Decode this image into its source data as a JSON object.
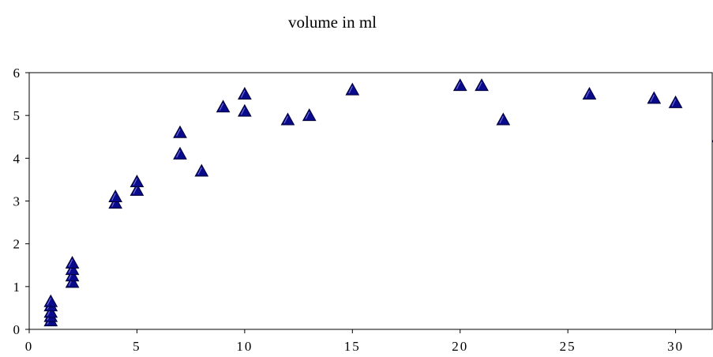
{
  "chart_data": {
    "type": "scatter",
    "title": "volume in ml",
    "xlabel": "",
    "ylabel": "",
    "xlim": [
      0,
      31.7
    ],
    "ylim": [
      0,
      6
    ],
    "x_ticks": [
      0,
      5,
      10,
      15,
      20,
      25,
      30
    ],
    "y_ticks": [
      0,
      1,
      2,
      3,
      4,
      5,
      6
    ],
    "grid": false,
    "legend": "none",
    "marker": "triangle",
    "marker_color": "#0a0a8c",
    "series": [
      {
        "points": [
          [
            1,
            0.2
          ],
          [
            1,
            0.3
          ],
          [
            1,
            0.4
          ],
          [
            1,
            0.55
          ],
          [
            1,
            0.65
          ],
          [
            2,
            1.1
          ],
          [
            2,
            1.25
          ],
          [
            2,
            1.4
          ],
          [
            2,
            1.55
          ],
          [
            4,
            2.95
          ],
          [
            4,
            3.1
          ],
          [
            5,
            3.25
          ],
          [
            5,
            3.45
          ],
          [
            7,
            4.1
          ],
          [
            7,
            4.6
          ],
          [
            8,
            3.7
          ],
          [
            9,
            5.2
          ],
          [
            10,
            5.1
          ],
          [
            10,
            5.5
          ],
          [
            12,
            4.9
          ],
          [
            13,
            5.0
          ],
          [
            15,
            5.6
          ],
          [
            20,
            5.7
          ],
          [
            21,
            5.7
          ],
          [
            22,
            4.9
          ],
          [
            26,
            5.5
          ],
          [
            29,
            5.4
          ],
          [
            30,
            5.3
          ],
          [
            32,
            4.5
          ]
        ]
      }
    ]
  }
}
